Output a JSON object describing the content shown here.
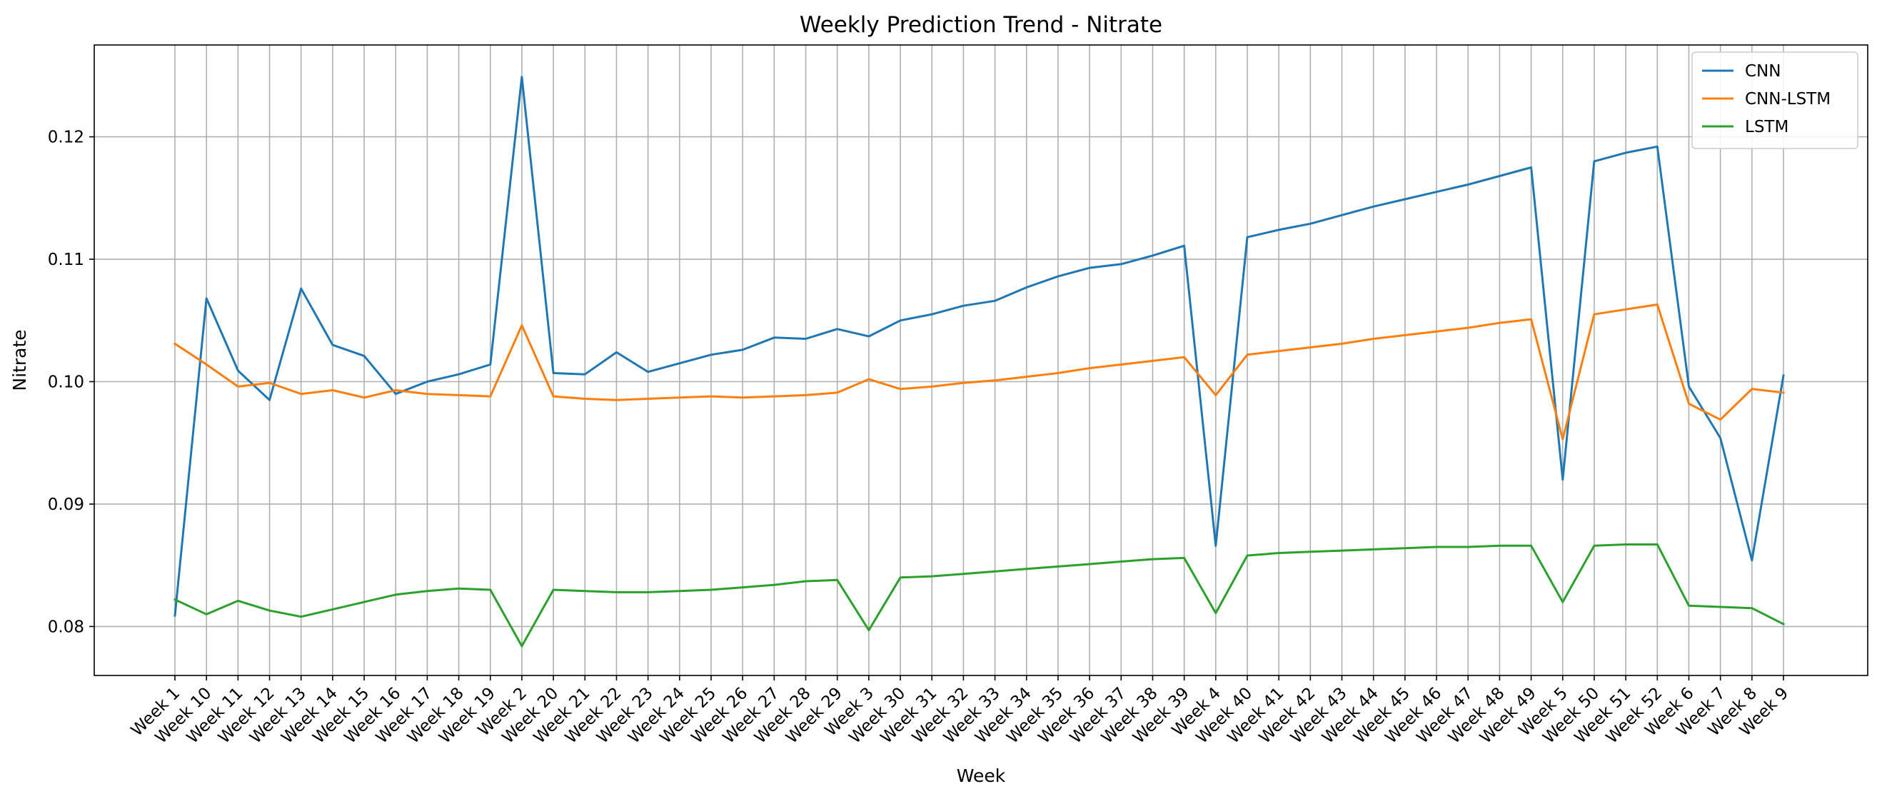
{
  "chart_data": {
    "type": "line",
    "title": "Weekly Prediction Trend - Nitrate",
    "xlabel": "Week",
    "ylabel": "Nitrate",
    "ylim": [
      0.076,
      0.1275
    ],
    "yticks": [
      0.08,
      0.09,
      0.1,
      0.11,
      0.12
    ],
    "ytick_labels": [
      "0.08",
      "0.09",
      "0.10",
      "0.11",
      "0.12"
    ],
    "grid": true,
    "legend_position": "top-right",
    "categories": [
      "Week 1",
      "Week 10",
      "Week 11",
      "Week 12",
      "Week 13",
      "Week 14",
      "Week 15",
      "Week 16",
      "Week 17",
      "Week 18",
      "Week 19",
      "Week 2",
      "Week 20",
      "Week 21",
      "Week 22",
      "Week 23",
      "Week 24",
      "Week 25",
      "Week 26",
      "Week 27",
      "Week 28",
      "Week 29",
      "Week 3",
      "Week 30",
      "Week 31",
      "Week 32",
      "Week 33",
      "Week 34",
      "Week 35",
      "Week 36",
      "Week 37",
      "Week 38",
      "Week 39",
      "Week 4",
      "Week 40",
      "Week 41",
      "Week 42",
      "Week 43",
      "Week 44",
      "Week 45",
      "Week 46",
      "Week 47",
      "Week 48",
      "Week 49",
      "Week 5",
      "Week 50",
      "Week 51",
      "Week 52",
      "Week 6",
      "Week 7",
      "Week 8",
      "Week 9"
    ],
    "series": [
      {
        "name": "CNN",
        "color": "#1f77b4",
        "values": [
          0.0809,
          0.1068,
          0.1009,
          0.0985,
          0.1076,
          0.103,
          0.1021,
          0.099,
          0.1,
          0.1006,
          0.1014,
          0.1249,
          0.1007,
          0.1006,
          0.1024,
          0.1008,
          0.1015,
          0.1022,
          0.1026,
          0.1036,
          0.1035,
          0.1043,
          0.1037,
          0.105,
          0.1055,
          0.1062,
          0.1066,
          0.1077,
          0.1086,
          0.1093,
          0.1096,
          0.1103,
          0.1111,
          0.0866,
          0.1118,
          0.1124,
          0.1129,
          0.1136,
          0.1143,
          0.1149,
          0.1155,
          0.1161,
          0.1168,
          0.1175,
          0.092,
          0.118,
          0.1187,
          0.1192,
          0.0996,
          0.0954,
          0.0854,
          0.1005
        ]
      },
      {
        "name": "CNN-LSTM",
        "color": "#ff7f0e",
        "values": [
          0.1031,
          0.1014,
          0.0996,
          0.0999,
          0.099,
          0.0993,
          0.0987,
          0.0993,
          0.099,
          0.0989,
          0.0988,
          0.1046,
          0.0988,
          0.0986,
          0.0985,
          0.0986,
          0.0987,
          0.0988,
          0.0987,
          0.0988,
          0.0989,
          0.0991,
          0.1002,
          0.0994,
          0.0996,
          0.0999,
          0.1001,
          0.1004,
          0.1007,
          0.1011,
          0.1014,
          0.1017,
          0.102,
          0.0989,
          0.1022,
          0.1025,
          0.1028,
          0.1031,
          0.1035,
          0.1038,
          0.1041,
          0.1044,
          0.1048,
          0.1051,
          0.0953,
          0.1055,
          0.1059,
          0.1063,
          0.0982,
          0.0969,
          0.0994,
          0.0991
        ]
      },
      {
        "name": "LSTM",
        "color": "#2ca02c",
        "values": [
          0.0822,
          0.081,
          0.0821,
          0.0813,
          0.0808,
          0.0814,
          0.082,
          0.0826,
          0.0829,
          0.0831,
          0.083,
          0.0784,
          0.083,
          0.0829,
          0.0828,
          0.0828,
          0.0829,
          0.083,
          0.0832,
          0.0834,
          0.0837,
          0.0838,
          0.0797,
          0.084,
          0.0841,
          0.0843,
          0.0845,
          0.0847,
          0.0849,
          0.0851,
          0.0853,
          0.0855,
          0.0856,
          0.0811,
          0.0858,
          0.086,
          0.0861,
          0.0862,
          0.0863,
          0.0864,
          0.0865,
          0.0865,
          0.0866,
          0.0866,
          0.082,
          0.0866,
          0.0867,
          0.0867,
          0.0817,
          0.0816,
          0.0815,
          0.0802
        ]
      }
    ]
  }
}
